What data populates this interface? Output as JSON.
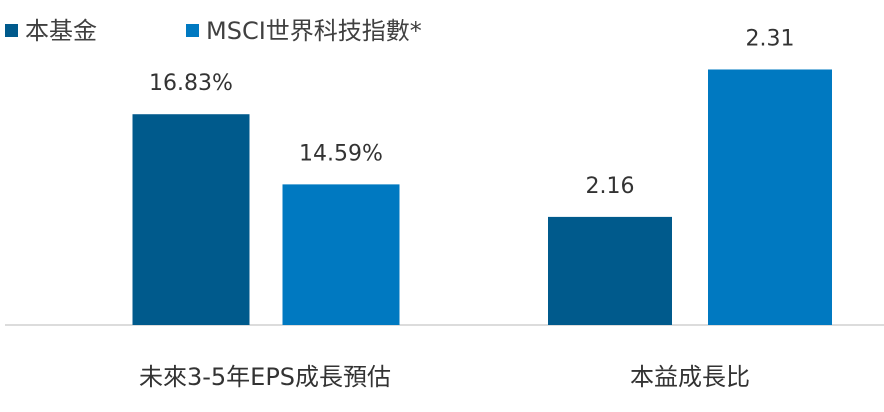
{
  "chart_data": [
    {
      "type": "bar",
      "xlabel": "未來3-5年EPS成長預估",
      "ylim": [
        10.1,
        19.2
      ],
      "series": [
        {
          "name": "本基金",
          "color": "#005a8c",
          "values": [
            16.83
          ],
          "value_labels": [
            "16.83%"
          ]
        },
        {
          "name": "MSCI世界科技指數*",
          "color": "#0079c1",
          "values": [
            14.59
          ],
          "value_labels": [
            "14.59%"
          ]
        }
      ]
    },
    {
      "type": "bar",
      "xlabel": "本益成長比",
      "ylim": [
        2.05,
        2.34
      ],
      "series": [
        {
          "name": "本基金",
          "color": "#005a8c",
          "values": [
            2.16
          ],
          "value_labels": [
            "2.16"
          ]
        },
        {
          "name": "MSCI世界科技指數*",
          "color": "#0079c1",
          "values": [
            2.31
          ],
          "value_labels": [
            "2.31"
          ]
        }
      ]
    }
  ]
}
